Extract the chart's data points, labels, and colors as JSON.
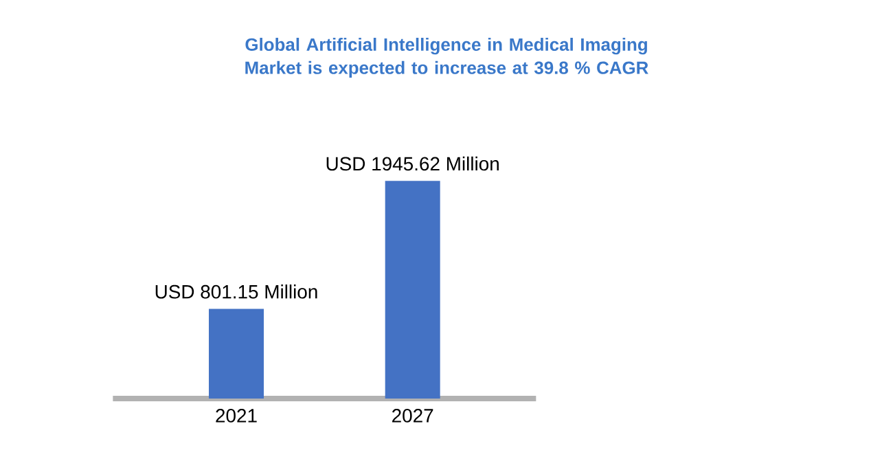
{
  "chart_data": {
    "type": "bar",
    "title": "Global Artificial Intelligence in Medical Imaging Market is expected to increase at 39.8 % CAGR",
    "categories": [
      "2021",
      "2027"
    ],
    "values": [
      801.15,
      1945.62
    ],
    "value_labels": [
      "USD 801.15 Million",
      "USD 1945.62 Million"
    ],
    "color": "#4472c4"
  }
}
